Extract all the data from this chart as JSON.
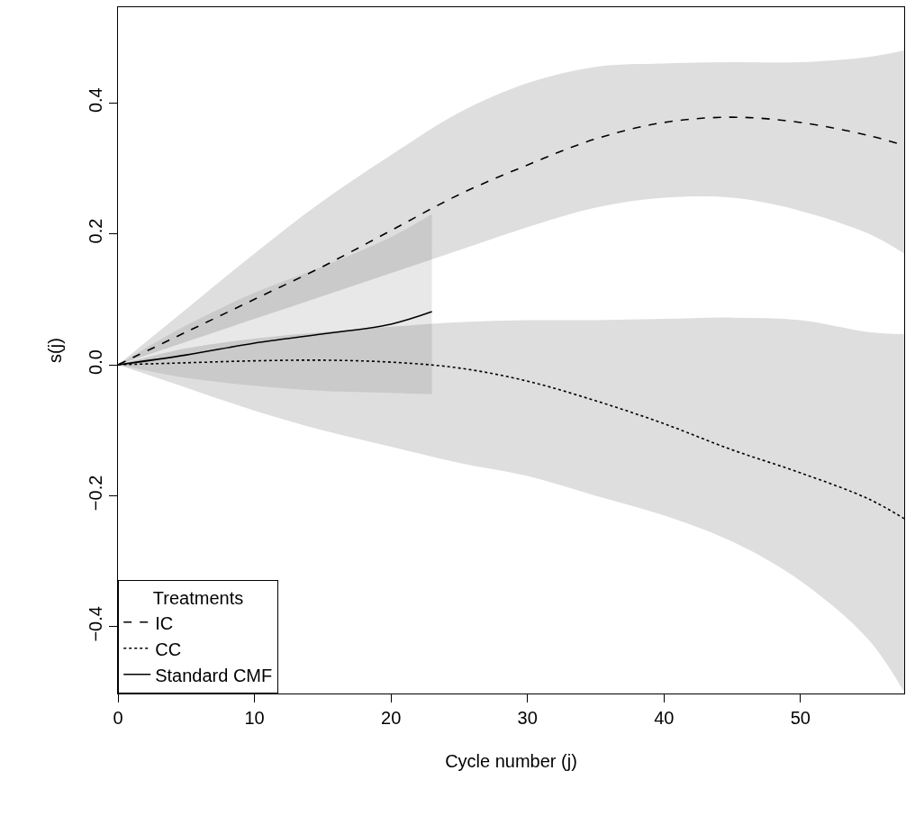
{
  "chart_data": {
    "type": "line",
    "xlabel": "Cycle number (j)",
    "ylabel": "s(j)",
    "legend_title": "Treatments",
    "legend": "bottom left",
    "marker": "none",
    "xlim": [
      0,
      57.6
    ],
    "ylim": [
      -0.502,
      0.546
    ],
    "xticks": [
      0,
      10,
      20,
      30,
      40,
      50
    ],
    "yticks": [
      -0.4,
      -0.2,
      {
        "value": 0,
        "label": "0.0"
      },
      0.2,
      0.4
    ],
    "series": [
      {
        "name": "IC",
        "color": "#000000",
        "line_style": "dashed",
        "x": [
          0,
          5,
          10,
          15,
          20,
          25,
          30,
          35,
          40,
          45,
          50,
          55,
          57.6
        ],
        "values": [
          0,
          0.05,
          0.1,
          0.15,
          0.205,
          0.26,
          0.305,
          0.345,
          0.37,
          0.378,
          0.37,
          0.35,
          0.335
        ],
        "lower": [
          0,
          0.035,
          0.07,
          0.105,
          0.14,
          0.175,
          0.21,
          0.24,
          0.255,
          0.255,
          0.235,
          0.2,
          0.17
        ],
        "upper": [
          0,
          0.085,
          0.17,
          0.25,
          0.32,
          0.385,
          0.43,
          0.455,
          0.46,
          0.462,
          0.462,
          0.47,
          0.48
        ]
      },
      {
        "name": "CC",
        "color": "#000000",
        "line_style": "dotted",
        "x": [
          0,
          5,
          10,
          15,
          20,
          25,
          30,
          35,
          40,
          45,
          50,
          55,
          57.6
        ],
        "values": [
          0,
          0.003,
          0.006,
          0.007,
          0.004,
          -0.005,
          -0.025,
          -0.055,
          -0.09,
          -0.13,
          -0.165,
          -0.205,
          -0.235
        ],
        "lower": [
          0,
          -0.035,
          -0.07,
          -0.1,
          -0.125,
          -0.15,
          -0.17,
          -0.2,
          -0.23,
          -0.27,
          -0.33,
          -0.42,
          -0.5
        ],
        "upper": [
          0,
          0.025,
          0.04,
          0.05,
          0.058,
          0.065,
          0.068,
          0.068,
          0.07,
          0.072,
          0.068,
          0.05,
          0.047
        ]
      },
      {
        "name": "Standard CMF",
        "color": "#000000",
        "line_style": "solid",
        "x": [
          0,
          5,
          10,
          15,
          20,
          23
        ],
        "values": [
          0,
          0.015,
          0.033,
          0.047,
          0.062,
          0.081
        ],
        "lower": [
          0,
          -0.02,
          -0.032,
          -0.04,
          -0.043,
          -0.045
        ],
        "upper": [
          0,
          0.06,
          0.11,
          0.15,
          0.195,
          0.23
        ]
      }
    ]
  }
}
